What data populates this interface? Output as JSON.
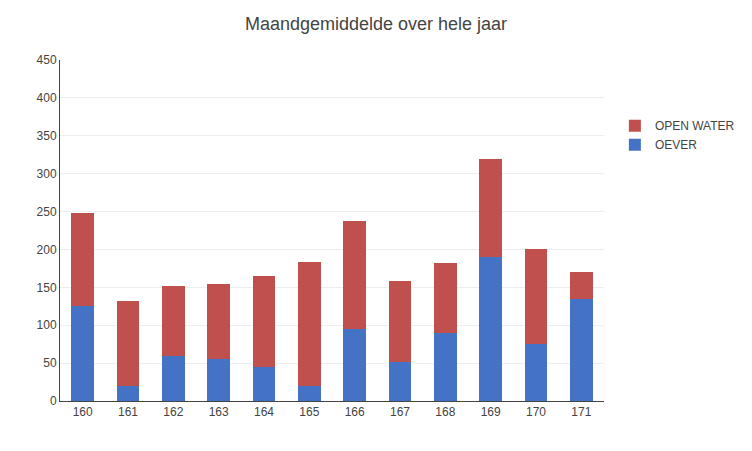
{
  "chart_data": {
    "type": "bar",
    "title": "Maandgemiddelde over hele jaar",
    "categories": [
      "160",
      "161",
      "162",
      "163",
      "164",
      "165",
      "166",
      "167",
      "168",
      "169",
      "170",
      "171"
    ],
    "series": [
      {
        "name": "OEVER",
        "color": "#4472C4",
        "values": [
          125,
          20,
          60,
          55,
          45,
          20,
          95,
          52,
          90,
          190,
          75,
          135
        ]
      },
      {
        "name": "OPEN WATER",
        "color": "#C0504D",
        "values": [
          123,
          112,
          92,
          100,
          120,
          163,
          143,
          106,
          92,
          130,
          125,
          35
        ]
      }
    ],
    "stacked": true,
    "ylim": [
      0,
      450
    ],
    "yticks": [
      0,
      50,
      100,
      150,
      200,
      250,
      300,
      350,
      400,
      450
    ],
    "grid": true,
    "legend": "right"
  }
}
